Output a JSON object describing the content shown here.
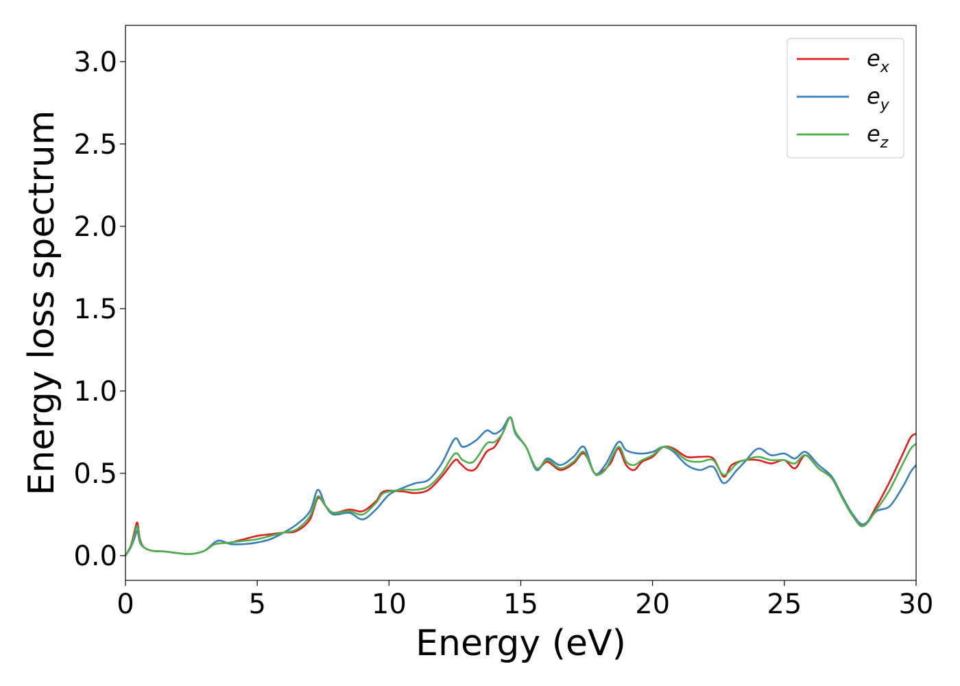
{
  "chart_data": {
    "type": "line",
    "xlabel": "Energy (eV)",
    "ylabel": "Energy loss spectrum",
    "xlim": [
      0,
      30
    ],
    "ylim": [
      -0.15,
      3.22
    ],
    "xticks": [
      "0",
      "5",
      "10",
      "15",
      "20",
      "25",
      "30"
    ],
    "yticks": [
      "0.0",
      "0.5",
      "1.0",
      "1.5",
      "2.0",
      "2.5",
      "3.0"
    ],
    "grid": false,
    "legend_position": "top-right",
    "series": [
      {
        "name": "e",
        "subscript": "x",
        "color": "#e41a1c",
        "points": [
          [
            0,
            0
          ],
          [
            0.2,
            0.06
          ],
          [
            0.35,
            0.15
          ],
          [
            0.45,
            0.2
          ],
          [
            0.55,
            0.1
          ],
          [
            0.7,
            0.05
          ],
          [
            1,
            0.03
          ],
          [
            1.5,
            0.025
          ],
          [
            2,
            0.015
          ],
          [
            2.5,
            0.01
          ],
          [
            3,
            0.03
          ],
          [
            3.4,
            0.07
          ],
          [
            4,
            0.08
          ],
          [
            4.5,
            0.1
          ],
          [
            5,
            0.12
          ],
          [
            5.5,
            0.13
          ],
          [
            6,
            0.14
          ],
          [
            6.5,
            0.15
          ],
          [
            7,
            0.22
          ],
          [
            7.3,
            0.35
          ],
          [
            7.6,
            0.3
          ],
          [
            7.9,
            0.26
          ],
          [
            8.5,
            0.28
          ],
          [
            9,
            0.27
          ],
          [
            9.5,
            0.33
          ],
          [
            9.8,
            0.39
          ],
          [
            10.5,
            0.39
          ],
          [
            11,
            0.38
          ],
          [
            11.5,
            0.4
          ],
          [
            12,
            0.48
          ],
          [
            12.5,
            0.58
          ],
          [
            12.7,
            0.56
          ],
          [
            13,
            0.52
          ],
          [
            13.3,
            0.53
          ],
          [
            13.7,
            0.63
          ],
          [
            14,
            0.66
          ],
          [
            14.3,
            0.74
          ],
          [
            14.6,
            0.84
          ],
          [
            14.8,
            0.75
          ],
          [
            15.2,
            0.66
          ],
          [
            15.6,
            0.53
          ],
          [
            16,
            0.57
          ],
          [
            16.5,
            0.52
          ],
          [
            17,
            0.56
          ],
          [
            17.4,
            0.62
          ],
          [
            17.8,
            0.5
          ],
          [
            18,
            0.5
          ],
          [
            18.4,
            0.56
          ],
          [
            18.7,
            0.65
          ],
          [
            19,
            0.55
          ],
          [
            19.3,
            0.52
          ],
          [
            19.6,
            0.57
          ],
          [
            20,
            0.6
          ],
          [
            20.4,
            0.66
          ],
          [
            20.8,
            0.65
          ],
          [
            21.3,
            0.6
          ],
          [
            21.8,
            0.6
          ],
          [
            22.3,
            0.59
          ],
          [
            22.7,
            0.48
          ],
          [
            23,
            0.55
          ],
          [
            23.5,
            0.58
          ],
          [
            24,
            0.58
          ],
          [
            24.5,
            0.56
          ],
          [
            25,
            0.58
          ],
          [
            25.4,
            0.53
          ],
          [
            25.8,
            0.61
          ],
          [
            26.3,
            0.53
          ],
          [
            26.8,
            0.47
          ],
          [
            27.2,
            0.35
          ],
          [
            27.6,
            0.24
          ],
          [
            28,
            0.18
          ],
          [
            28.5,
            0.3
          ],
          [
            29,
            0.45
          ],
          [
            29.5,
            0.62
          ],
          [
            29.8,
            0.72
          ],
          [
            30,
            0.74
          ]
        ]
      },
      {
        "name": "e",
        "subscript": "y",
        "color": "#377eb8",
        "points": [
          [
            0,
            0
          ],
          [
            0.2,
            0.05
          ],
          [
            0.35,
            0.11
          ],
          [
            0.45,
            0.15
          ],
          [
            0.55,
            0.08
          ],
          [
            0.7,
            0.05
          ],
          [
            1,
            0.03
          ],
          [
            1.5,
            0.025
          ],
          [
            2,
            0.015
          ],
          [
            2.5,
            0.01
          ],
          [
            3,
            0.03
          ],
          [
            3.5,
            0.09
          ],
          [
            4,
            0.07
          ],
          [
            4.5,
            0.07
          ],
          [
            5,
            0.08
          ],
          [
            5.5,
            0.1
          ],
          [
            6,
            0.14
          ],
          [
            6.5,
            0.19
          ],
          [
            7,
            0.27
          ],
          [
            7.3,
            0.4
          ],
          [
            7.6,
            0.3
          ],
          [
            7.9,
            0.25
          ],
          [
            8.5,
            0.26
          ],
          [
            9,
            0.22
          ],
          [
            9.5,
            0.28
          ],
          [
            10,
            0.37
          ],
          [
            10.5,
            0.41
          ],
          [
            11,
            0.44
          ],
          [
            11.5,
            0.46
          ],
          [
            12,
            0.56
          ],
          [
            12.5,
            0.71
          ],
          [
            12.8,
            0.66
          ],
          [
            13.3,
            0.7
          ],
          [
            13.7,
            0.76
          ],
          [
            14,
            0.74
          ],
          [
            14.3,
            0.77
          ],
          [
            14.6,
            0.84
          ],
          [
            14.8,
            0.74
          ],
          [
            15.2,
            0.66
          ],
          [
            15.6,
            0.52
          ],
          [
            16,
            0.59
          ],
          [
            16.5,
            0.55
          ],
          [
            17,
            0.6
          ],
          [
            17.4,
            0.66
          ],
          [
            17.8,
            0.5
          ],
          [
            18.2,
            0.55
          ],
          [
            18.7,
            0.69
          ],
          [
            19,
            0.64
          ],
          [
            19.5,
            0.62
          ],
          [
            20,
            0.63
          ],
          [
            20.4,
            0.66
          ],
          [
            20.8,
            0.63
          ],
          [
            21.3,
            0.55
          ],
          [
            21.8,
            0.52
          ],
          [
            22.3,
            0.54
          ],
          [
            22.7,
            0.44
          ],
          [
            23.2,
            0.52
          ],
          [
            23.5,
            0.57
          ],
          [
            24,
            0.65
          ],
          [
            24.5,
            0.61
          ],
          [
            25,
            0.62
          ],
          [
            25.4,
            0.59
          ],
          [
            25.8,
            0.63
          ],
          [
            26.3,
            0.55
          ],
          [
            26.8,
            0.48
          ],
          [
            27.2,
            0.36
          ],
          [
            27.6,
            0.25
          ],
          [
            28,
            0.19
          ],
          [
            28.5,
            0.27
          ],
          [
            29,
            0.3
          ],
          [
            29.5,
            0.42
          ],
          [
            29.8,
            0.51
          ],
          [
            30,
            0.55
          ]
        ]
      },
      {
        "name": "e",
        "subscript": "z",
        "color": "#4daf4a",
        "points": [
          [
            0,
            0
          ],
          [
            0.2,
            0.055
          ],
          [
            0.35,
            0.13
          ],
          [
            0.45,
            0.18
          ],
          [
            0.55,
            0.09
          ],
          [
            0.7,
            0.05
          ],
          [
            1,
            0.03
          ],
          [
            1.5,
            0.025
          ],
          [
            2,
            0.015
          ],
          [
            2.5,
            0.01
          ],
          [
            3,
            0.03
          ],
          [
            3.4,
            0.07
          ],
          [
            4,
            0.08
          ],
          [
            4.5,
            0.09
          ],
          [
            5,
            0.1
          ],
          [
            5.5,
            0.12
          ],
          [
            6,
            0.14
          ],
          [
            6.5,
            0.16
          ],
          [
            7,
            0.24
          ],
          [
            7.3,
            0.36
          ],
          [
            7.6,
            0.3
          ],
          [
            7.9,
            0.26
          ],
          [
            8.5,
            0.27
          ],
          [
            9,
            0.25
          ],
          [
            9.5,
            0.32
          ],
          [
            9.8,
            0.38
          ],
          [
            10.5,
            0.4
          ],
          [
            11,
            0.4
          ],
          [
            11.5,
            0.42
          ],
          [
            12,
            0.5
          ],
          [
            12.5,
            0.62
          ],
          [
            12.8,
            0.58
          ],
          [
            13.2,
            0.57
          ],
          [
            13.7,
            0.68
          ],
          [
            14,
            0.69
          ],
          [
            14.3,
            0.74
          ],
          [
            14.6,
            0.84
          ],
          [
            14.8,
            0.75
          ],
          [
            15.2,
            0.66
          ],
          [
            15.6,
            0.53
          ],
          [
            16,
            0.58
          ],
          [
            16.5,
            0.53
          ],
          [
            17,
            0.57
          ],
          [
            17.4,
            0.63
          ],
          [
            17.8,
            0.5
          ],
          [
            18.2,
            0.52
          ],
          [
            18.7,
            0.66
          ],
          [
            19,
            0.57
          ],
          [
            19.3,
            0.55
          ],
          [
            19.6,
            0.58
          ],
          [
            20,
            0.61
          ],
          [
            20.4,
            0.66
          ],
          [
            20.8,
            0.64
          ],
          [
            21.3,
            0.58
          ],
          [
            21.8,
            0.57
          ],
          [
            22.3,
            0.58
          ],
          [
            22.7,
            0.49
          ],
          [
            23.2,
            0.56
          ],
          [
            23.5,
            0.58
          ],
          [
            24,
            0.6
          ],
          [
            24.5,
            0.58
          ],
          [
            25,
            0.58
          ],
          [
            25.4,
            0.56
          ],
          [
            25.8,
            0.61
          ],
          [
            26.3,
            0.53
          ],
          [
            26.8,
            0.47
          ],
          [
            27.2,
            0.35
          ],
          [
            27.6,
            0.24
          ],
          [
            28,
            0.18
          ],
          [
            28.5,
            0.28
          ],
          [
            29,
            0.4
          ],
          [
            29.5,
            0.56
          ],
          [
            29.8,
            0.65
          ],
          [
            30,
            0.68
          ]
        ]
      }
    ]
  }
}
